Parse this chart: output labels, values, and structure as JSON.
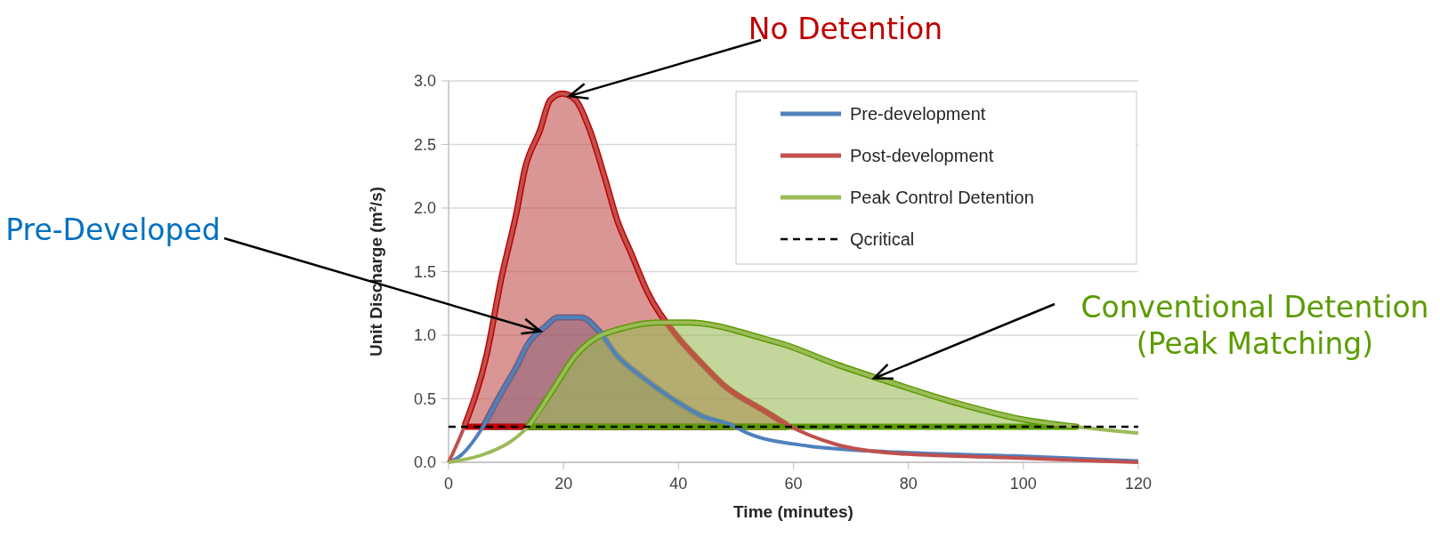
{
  "chart_data": {
    "type": "line",
    "xlabel": "Time (minutes)",
    "ylabel": "Unit Discharge (m²/s)",
    "xlim": [
      0,
      120
    ],
    "xticks": [
      0,
      20,
      40,
      60,
      80,
      100,
      120
    ],
    "ylim": [
      0,
      3
    ],
    "yticks": [
      {
        "value": 0,
        "label": "0.0"
      },
      {
        "value": 0.5,
        "label": "0.5"
      },
      {
        "value": 1,
        "label": "1.0"
      },
      {
        "value": 1.5,
        "label": "1.5"
      },
      {
        "value": 2,
        "label": "2.0"
      },
      {
        "value": 2.5,
        "label": "2.5"
      },
      {
        "value": 3,
        "label": "3.0"
      }
    ],
    "grid": "y",
    "legend": "top right",
    "marker": "none",
    "series": [
      {
        "name": "Pre-development",
        "color": "#4f81bd",
        "x": [
          0,
          2,
          6,
          9.1,
          11.8,
          13.8,
          16.9,
          19,
          23.1,
          26.2,
          29.3,
          33.4,
          38.6,
          43.8,
          49.4,
          52,
          62.4,
          77.9,
          98.5,
          120
        ],
        "values": [
          0,
          0.05,
          0.28,
          0.54,
          0.75,
          0.93,
          1.07,
          1.14,
          1.14,
          1.03,
          0.84,
          0.68,
          0.51,
          0.37,
          0.29,
          0.23,
          0.13,
          0.08,
          0.05,
          0.01
        ]
      },
      {
        "name": "Post-development",
        "color": "#c0504d",
        "x": [
          0,
          2.9,
          6.6,
          9.2,
          11.8,
          13.3,
          15.9,
          17.7,
          19.8,
          22.1,
          24.6,
          27.3,
          29.3,
          31.9,
          34.5,
          39.6,
          43.8,
          47.8,
          55.1,
          58.7,
          67.5,
          77.9,
          98.5,
          120
        ],
        "values": [
          0,
          0.3,
          0.84,
          1.45,
          1.96,
          2.31,
          2.61,
          2.85,
          2.9,
          2.85,
          2.61,
          2.22,
          1.91,
          1.63,
          1.35,
          1,
          0.79,
          0.61,
          0.4,
          0.3,
          0.14,
          0.07,
          0.035,
          0
        ]
      },
      {
        "name": "Peak Control Detention",
        "color": "#9bbb59",
        "x": [
          0,
          6.6,
          10.7,
          13.8,
          18,
          22.1,
          25.7,
          29.9,
          36.5,
          41.6,
          55.1,
          58.2,
          67.5,
          76.8,
          88.1,
          99.6,
          109.3,
          120
        ],
        "values": [
          0,
          0.07,
          0.16,
          0.28,
          0.56,
          0.84,
          0.98,
          1.05,
          1.1,
          1.1,
          0.97,
          0.93,
          0.77,
          0.63,
          0.47,
          0.34,
          0.28,
          0.23
        ]
      }
    ],
    "ref_lines": [
      {
        "axis": "y",
        "value": 0.28,
        "label": "Qcritical",
        "color": "#000000",
        "line_style": "dashed"
      }
    ],
    "annotations": [
      {
        "text": "No Detention",
        "x": 21,
        "y": 2.88
      },
      {
        "text": "Pre-Developed",
        "x": 16,
        "y": 1.03
      },
      {
        "text": "Conventional Detention\n(Peak Matching)",
        "x": 74,
        "y": 0.66
      }
    ]
  }
}
